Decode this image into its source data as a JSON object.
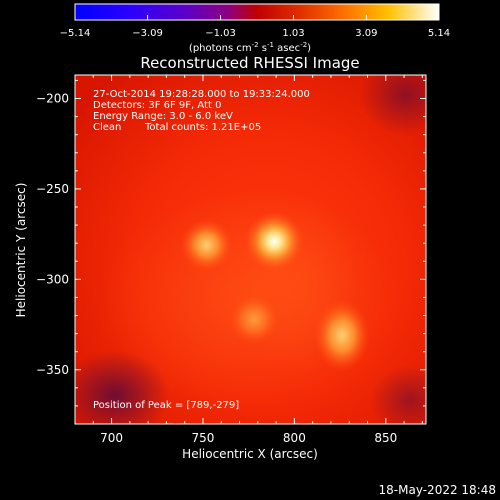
{
  "colorbar": {
    "ticks": [
      "-5.14",
      "-3.09",
      "-1.03",
      "1.03",
      "3.09",
      "5.14"
    ],
    "unit_main": "(photons cm",
    "unit_exp1": "-2",
    "unit_mid": " s",
    "unit_exp2": "-1",
    "unit_mid2": " asec",
    "unit_exp3": "-2",
    "unit_close": ")",
    "range": [
      -5.14,
      5.14
    ]
  },
  "chart_data": {
    "type": "heatmap",
    "title": "Reconstructed RHESSI Image",
    "xlabel": "Heliocentric X (arcsec)",
    "ylabel": "Heliocentric Y (arcsec)",
    "xlim": [
      680,
      872
    ],
    "ylim": [
      -380,
      -187
    ],
    "xticks": [
      700,
      750,
      800,
      850
    ],
    "yticks": [
      -200,
      -250,
      -300,
      -350
    ],
    "xtick_labels": [
      "700",
      "750",
      "800",
      "850"
    ],
    "ytick_labels": [
      "-200",
      "-250",
      "-300",
      "-350"
    ],
    "annotations": [
      "27-Oct-2014 19:28:28.000 to 19:33:24.000",
      "Detectors: 3F 6F 9F, Att 0",
      "Energy Range: 3.0 - 6.0 keV",
      "Clean",
      "Total counts: 1.21E+05"
    ],
    "peak_label": "Position of Peak = [789,-279]",
    "sources": [
      {
        "x": 789,
        "y": -279,
        "value": 5.14
      },
      {
        "x": 752,
        "y": -281,
        "value": 3.6
      },
      {
        "x": 826,
        "y": -331,
        "value": 3.8
      },
      {
        "x": 778,
        "y": -322,
        "value": 2.7
      }
    ]
  },
  "footer": {
    "timestamp": "18-May-2022 18:48"
  }
}
